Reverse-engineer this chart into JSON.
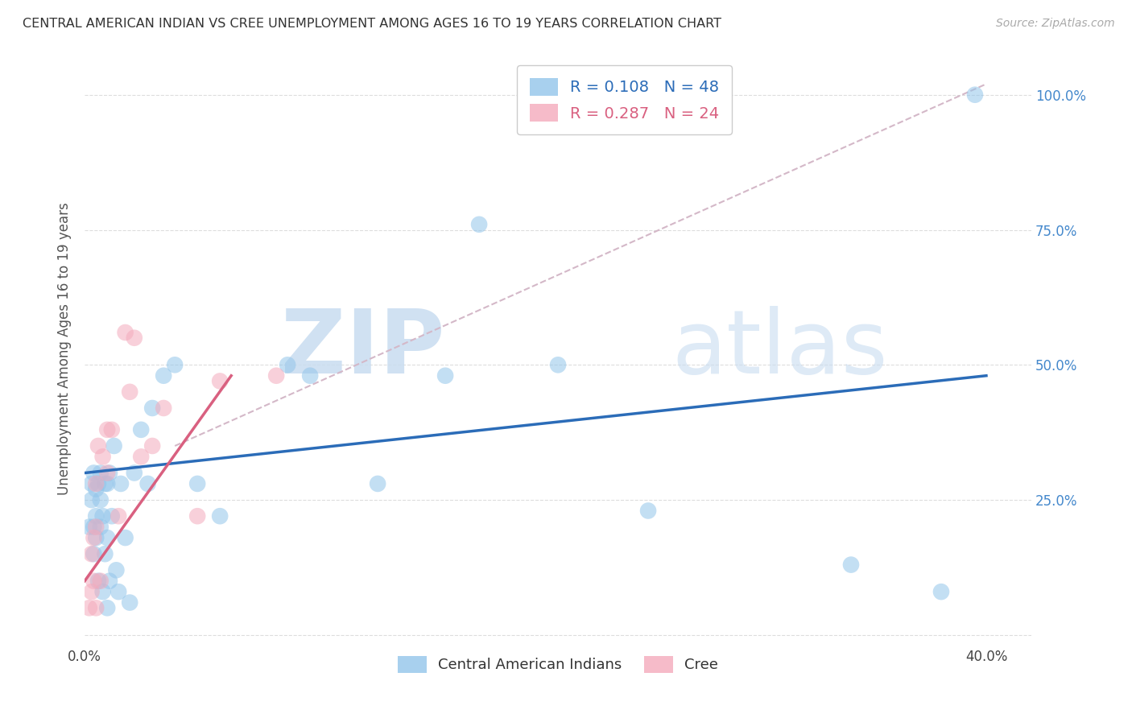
{
  "title": "CENTRAL AMERICAN INDIAN VS CREE UNEMPLOYMENT AMONG AGES 16 TO 19 YEARS CORRELATION CHART",
  "source": "Source: ZipAtlas.com",
  "ylabel": "Unemployment Among Ages 16 to 19 years",
  "xlim": [
    0.0,
    0.42
  ],
  "ylim": [
    -0.02,
    1.08
  ],
  "y_axis_max": 1.0,
  "x_tick_positions": [
    0.0,
    0.05,
    0.1,
    0.15,
    0.2,
    0.25,
    0.3,
    0.35,
    0.4
  ],
  "x_tick_labels_show": [
    "0.0%",
    "",
    "",
    "",
    "",
    "",
    "",
    "",
    "40.0%"
  ],
  "y_tick_positions": [
    0.0,
    0.25,
    0.5,
    0.75,
    1.0
  ],
  "y_tick_labels": [
    "",
    "25.0%",
    "50.0%",
    "75.0%",
    "100.0%"
  ],
  "legend1_label": "R = 0.108   N = 48",
  "legend2_label": "R = 0.287   N = 24",
  "legend1_color": "#92C5EA",
  "legend2_color": "#F4AABC",
  "blue_scatter_x": [
    0.002,
    0.003,
    0.003,
    0.004,
    0.004,
    0.004,
    0.005,
    0.005,
    0.005,
    0.006,
    0.006,
    0.007,
    0.007,
    0.007,
    0.008,
    0.008,
    0.009,
    0.009,
    0.01,
    0.01,
    0.01,
    0.011,
    0.011,
    0.012,
    0.013,
    0.014,
    0.015,
    0.016,
    0.018,
    0.02,
    0.022,
    0.025,
    0.028,
    0.03,
    0.035,
    0.04,
    0.05,
    0.06,
    0.09,
    0.1,
    0.13,
    0.16,
    0.175,
    0.21,
    0.25,
    0.34,
    0.38,
    0.395
  ],
  "blue_scatter_y": [
    0.2,
    0.25,
    0.28,
    0.15,
    0.2,
    0.3,
    0.18,
    0.22,
    0.27,
    0.1,
    0.28,
    0.2,
    0.25,
    0.3,
    0.08,
    0.22,
    0.15,
    0.28,
    0.05,
    0.18,
    0.28,
    0.1,
    0.3,
    0.22,
    0.35,
    0.12,
    0.08,
    0.28,
    0.18,
    0.06,
    0.3,
    0.38,
    0.28,
    0.42,
    0.48,
    0.5,
    0.28,
    0.22,
    0.5,
    0.48,
    0.28,
    0.48,
    0.76,
    0.5,
    0.23,
    0.13,
    0.08,
    1.0
  ],
  "pink_scatter_x": [
    0.002,
    0.003,
    0.003,
    0.004,
    0.004,
    0.005,
    0.005,
    0.005,
    0.006,
    0.007,
    0.008,
    0.01,
    0.01,
    0.012,
    0.015,
    0.018,
    0.02,
    0.022,
    0.025,
    0.03,
    0.035,
    0.05,
    0.06,
    0.085
  ],
  "pink_scatter_y": [
    0.05,
    0.08,
    0.15,
    0.1,
    0.18,
    0.05,
    0.2,
    0.28,
    0.35,
    0.1,
    0.33,
    0.3,
    0.38,
    0.38,
    0.22,
    0.56,
    0.45,
    0.55,
    0.33,
    0.35,
    0.42,
    0.22,
    0.47,
    0.48
  ],
  "blue_line_x": [
    0.0,
    0.4
  ],
  "blue_line_y": [
    0.3,
    0.48
  ],
  "pink_line_x": [
    0.0,
    0.065
  ],
  "pink_line_y": [
    0.1,
    0.48
  ],
  "dashed_line_x": [
    0.04,
    0.4
  ],
  "dashed_line_y": [
    0.35,
    1.02
  ],
  "blue_line_color": "#2B6CB8",
  "pink_line_color": "#D96080",
  "dashed_line_color": "#D4B8C8",
  "background_color": "#FFFFFF",
  "grid_color": "#DDDDDD",
  "watermark_zip_color": "#C8DCF0",
  "watermark_atlas_color": "#C8DCF0"
}
